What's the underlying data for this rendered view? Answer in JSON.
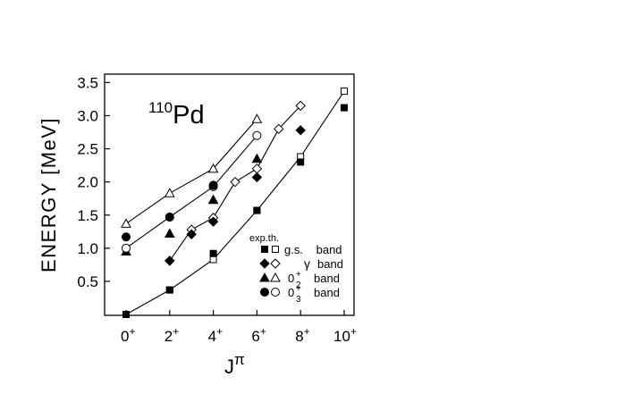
{
  "chart_data": {
    "type": "scatter",
    "title": "",
    "label_text": {
      "mass": "110",
      "element": "Pd"
    },
    "ylabel": "ENERGY [MeV]",
    "xlabel_text": {
      "base": "J",
      "sup": "π"
    },
    "ylim": [
      0,
      3.6
    ],
    "xlim": [
      0,
      10
    ],
    "yticks": [
      "0.5",
      "1.0",
      "1.5",
      "2.0",
      "2.5",
      "3.0",
      "3.5"
    ],
    "ytick_values": [
      0.5,
      1.0,
      1.5,
      2.0,
      2.5,
      3.0,
      3.5
    ],
    "xticks": [
      {
        "x": 0,
        "num": "0",
        "sup": "+"
      },
      {
        "x": 2,
        "num": "2",
        "sup": "+"
      },
      {
        "x": 4,
        "num": "4",
        "sup": "+"
      },
      {
        "x": 6,
        "num": "6",
        "sup": "+"
      },
      {
        "x": 8,
        "num": "8",
        "sup": "+"
      },
      {
        "x": 10,
        "num": "10",
        "sup": "+"
      }
    ],
    "legend": {
      "header": "exp.th.",
      "entries": [
        {
          "key": "gs",
          "pre": "g.s.",
          "mid": "",
          "sub": "",
          "post": "band"
        },
        {
          "key": "gamma",
          "pre": "",
          "mid": "γ",
          "sub": "",
          "post": "band"
        },
        {
          "key": "z2",
          "pre": "0",
          "mid": "+",
          "sub": "2",
          "post": "band"
        },
        {
          "key": "z3",
          "pre": "0",
          "mid": "+",
          "sub": "3",
          "post": "band"
        }
      ]
    },
    "series": [
      {
        "key": "gs",
        "marker": "square",
        "exp": [
          [
            0,
            0.0
          ],
          [
            2,
            0.37
          ],
          [
            4,
            0.92
          ],
          [
            6,
            1.57
          ],
          [
            8,
            2.3
          ],
          [
            10,
            3.12
          ]
        ],
        "th": [
          [
            0,
            0.0
          ],
          [
            2,
            0.37
          ],
          [
            4,
            0.83
          ],
          [
            6,
            1.57
          ],
          [
            8,
            2.38
          ],
          [
            10,
            3.37
          ]
        ]
      },
      {
        "key": "gamma",
        "marker": "diamond",
        "exp": [
          [
            2,
            0.81
          ],
          [
            3,
            1.21
          ],
          [
            4,
            1.4
          ],
          [
            6,
            2.07
          ],
          [
            8,
            2.78
          ]
        ],
        "th": [
          [
            2,
            0.81
          ],
          [
            3,
            1.28
          ],
          [
            4,
            1.46
          ],
          [
            5,
            2.0
          ],
          [
            6,
            2.2
          ],
          [
            7,
            2.8
          ],
          [
            8,
            3.15
          ]
        ]
      },
      {
        "key": "z2",
        "marker": "triangle",
        "exp": [
          [
            0,
            0.95
          ],
          [
            2,
            1.22
          ],
          [
            4,
            1.73
          ],
          [
            6,
            2.35
          ]
        ],
        "th": [
          [
            0,
            1.37
          ],
          [
            2,
            1.83
          ],
          [
            4,
            2.2
          ],
          [
            6,
            2.95
          ]
        ]
      },
      {
        "key": "z3",
        "marker": "circle",
        "exp": [
          [
            0,
            1.17
          ],
          [
            2,
            1.47
          ],
          [
            4,
            1.95
          ]
        ],
        "th": [
          [
            0,
            1.0
          ],
          [
            2,
            1.47
          ],
          [
            4,
            1.93
          ],
          [
            6,
            2.7
          ]
        ]
      }
    ]
  }
}
